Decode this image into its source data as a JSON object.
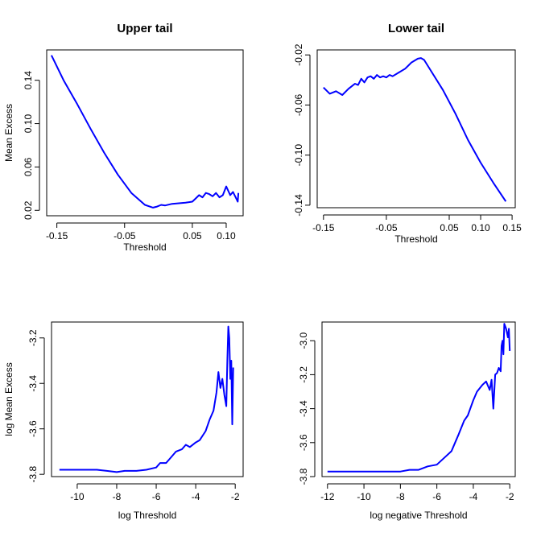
{
  "chart_data": [
    {
      "type": "line",
      "title": "Upper tail",
      "xlabel": "Threshold",
      "ylabel": "Mean Excess",
      "xlim": [
        -0.165,
        0.125
      ],
      "ylim": [
        0.015,
        0.168
      ],
      "xticks": [
        -0.15,
        -0.05,
        0.05,
        0.1
      ],
      "xtick_labels": [
        "-0.15",
        "-0.05",
        "0.05",
        "0.10"
      ],
      "yticks": [
        0.02,
        0.06,
        0.1,
        0.14
      ],
      "ytick_labels": [
        "0.02",
        "0.06",
        "0.10",
        "0.14"
      ],
      "color": "#0000ff",
      "grid": false,
      "series": [
        {
          "x": [
            -0.158,
            -0.14,
            -0.12,
            -0.1,
            -0.08,
            -0.06,
            -0.04,
            -0.02,
            -0.008,
            -0.002,
            0.004,
            0.01,
            0.02,
            0.03,
            0.04,
            0.05,
            0.055,
            0.06,
            0.065,
            0.07,
            0.075,
            0.08,
            0.085,
            0.09,
            0.095,
            0.1,
            0.103,
            0.106,
            0.11,
            0.114,
            0.117,
            0.118
          ],
          "y": [
            0.163,
            0.14,
            0.118,
            0.095,
            0.073,
            0.053,
            0.036,
            0.025,
            0.0225,
            0.0235,
            0.025,
            0.0245,
            0.026,
            0.0265,
            0.027,
            0.028,
            0.031,
            0.034,
            0.032,
            0.036,
            0.035,
            0.033,
            0.036,
            0.032,
            0.034,
            0.042,
            0.038,
            0.034,
            0.037,
            0.032,
            0.028,
            0.036
          ]
        }
      ]
    },
    {
      "type": "line",
      "title": "Lower tail",
      "xlabel": "Threshold",
      "ylabel": "",
      "xlim": [
        -0.16,
        0.155
      ],
      "ylim": [
        -0.142,
        -0.016
      ],
      "xticks": [
        -0.15,
        -0.05,
        0.05,
        0.1,
        0.15
      ],
      "xtick_labels": [
        "-0.15",
        "-0.05",
        "0.05",
        "0.10",
        "0.15"
      ],
      "yticks": [
        -0.14,
        -0.1,
        -0.06,
        -0.02
      ],
      "ytick_labels": [
        "-0.14",
        "-0.10",
        "-0.06",
        "-0.02"
      ],
      "color": "#0000ff",
      "grid": false,
      "series": [
        {
          "x": [
            -0.15,
            -0.14,
            -0.13,
            -0.12,
            -0.11,
            -0.105,
            -0.1,
            -0.095,
            -0.09,
            -0.085,
            -0.08,
            -0.075,
            -0.07,
            -0.065,
            -0.06,
            -0.055,
            -0.05,
            -0.045,
            -0.04,
            -0.03,
            -0.02,
            -0.01,
            0.0,
            0.005,
            0.01,
            0.02,
            0.04,
            0.06,
            0.08,
            0.1,
            0.12,
            0.14
          ],
          "y": [
            -0.046,
            -0.051,
            -0.049,
            -0.052,
            -0.047,
            -0.045,
            -0.043,
            -0.044,
            -0.039,
            -0.042,
            -0.038,
            -0.037,
            -0.039,
            -0.036,
            -0.038,
            -0.037,
            -0.038,
            -0.036,
            -0.037,
            -0.034,
            -0.031,
            -0.026,
            -0.023,
            -0.0225,
            -0.024,
            -0.032,
            -0.048,
            -0.067,
            -0.088,
            -0.106,
            -0.122,
            -0.137
          ]
        }
      ]
    },
    {
      "type": "line",
      "title": "",
      "xlabel": "log Threshold",
      "ylabel": "log Mean Excess",
      "xlim": [
        -11.3,
        -1.6
      ],
      "ylim": [
        -3.81,
        -3.13
      ],
      "xticks": [
        -10,
        -8,
        -6,
        -4,
        -2
      ],
      "xtick_labels": [
        "-10",
        "-8",
        "-6",
        "-4",
        "-2"
      ],
      "yticks": [
        -3.8,
        -3.6,
        -3.4,
        -3.2
      ],
      "ytick_labels": [
        "-3.8",
        "-3.6",
        "-3.4",
        "-3.2"
      ],
      "color": "#0000ff",
      "grid": false,
      "series": [
        {
          "x": [
            -10.9,
            -10.0,
            -9.0,
            -8.5,
            -8.0,
            -7.6,
            -7.0,
            -6.5,
            -6.0,
            -5.8,
            -5.5,
            -5.2,
            -5.0,
            -4.7,
            -4.5,
            -4.3,
            -4.0,
            -3.8,
            -3.5,
            -3.3,
            -3.1,
            -2.95,
            -2.85,
            -2.75,
            -2.65,
            -2.55,
            -2.45,
            -2.4,
            -2.35,
            -2.3,
            -2.25,
            -2.2,
            -2.15,
            -2.1
          ],
          "y": [
            -3.78,
            -3.78,
            -3.78,
            -3.785,
            -3.79,
            -3.785,
            -3.785,
            -3.78,
            -3.77,
            -3.75,
            -3.75,
            -3.72,
            -3.7,
            -3.69,
            -3.67,
            -3.68,
            -3.66,
            -3.65,
            -3.61,
            -3.56,
            -3.52,
            -3.44,
            -3.35,
            -3.42,
            -3.38,
            -3.45,
            -3.5,
            -3.3,
            -3.15,
            -3.2,
            -3.38,
            -3.3,
            -3.58,
            -3.33
          ]
        }
      ]
    },
    {
      "type": "line",
      "title": "",
      "xlabel": "log negative Threshold",
      "ylabel": "",
      "xlim": [
        -12.3,
        -1.7
      ],
      "ylim": [
        -3.8,
        -2.89
      ],
      "xticks": [
        -12,
        -10,
        -8,
        -6,
        -4,
        -2
      ],
      "xtick_labels": [
        "-12",
        "-10",
        "-8",
        "-6",
        "-4",
        "-2"
      ],
      "yticks": [
        -3.8,
        -3.6,
        -3.4,
        -3.2,
        -3.0
      ],
      "ytick_labels": [
        "-3.8",
        "-3.6",
        "-3.4",
        "-3.2",
        "-3.0"
      ],
      "color": "#0000ff",
      "grid": false,
      "series": [
        {
          "x": [
            -12.0,
            -11.0,
            -10.0,
            -9.0,
            -8.0,
            -7.5,
            -7.0,
            -6.5,
            -6.0,
            -5.5,
            -5.2,
            -5.0,
            -4.8,
            -4.5,
            -4.3,
            -4.0,
            -3.8,
            -3.5,
            -3.3,
            -3.1,
            -3.0,
            -2.9,
            -2.8,
            -2.7,
            -2.6,
            -2.5,
            -2.45,
            -2.4,
            -2.35,
            -2.3,
            -2.2,
            -2.1,
            -2.05,
            -2.0
          ],
          "y": [
            -3.77,
            -3.77,
            -3.77,
            -3.77,
            -3.77,
            -3.76,
            -3.76,
            -3.74,
            -3.73,
            -3.68,
            -3.65,
            -3.6,
            -3.55,
            -3.47,
            -3.44,
            -3.35,
            -3.3,
            -3.26,
            -3.24,
            -3.29,
            -3.23,
            -3.4,
            -3.2,
            -3.19,
            -3.16,
            -3.18,
            -3.03,
            -3.0,
            -3.08,
            -2.9,
            -2.93,
            -2.98,
            -2.93,
            -3.06
          ]
        }
      ]
    }
  ]
}
